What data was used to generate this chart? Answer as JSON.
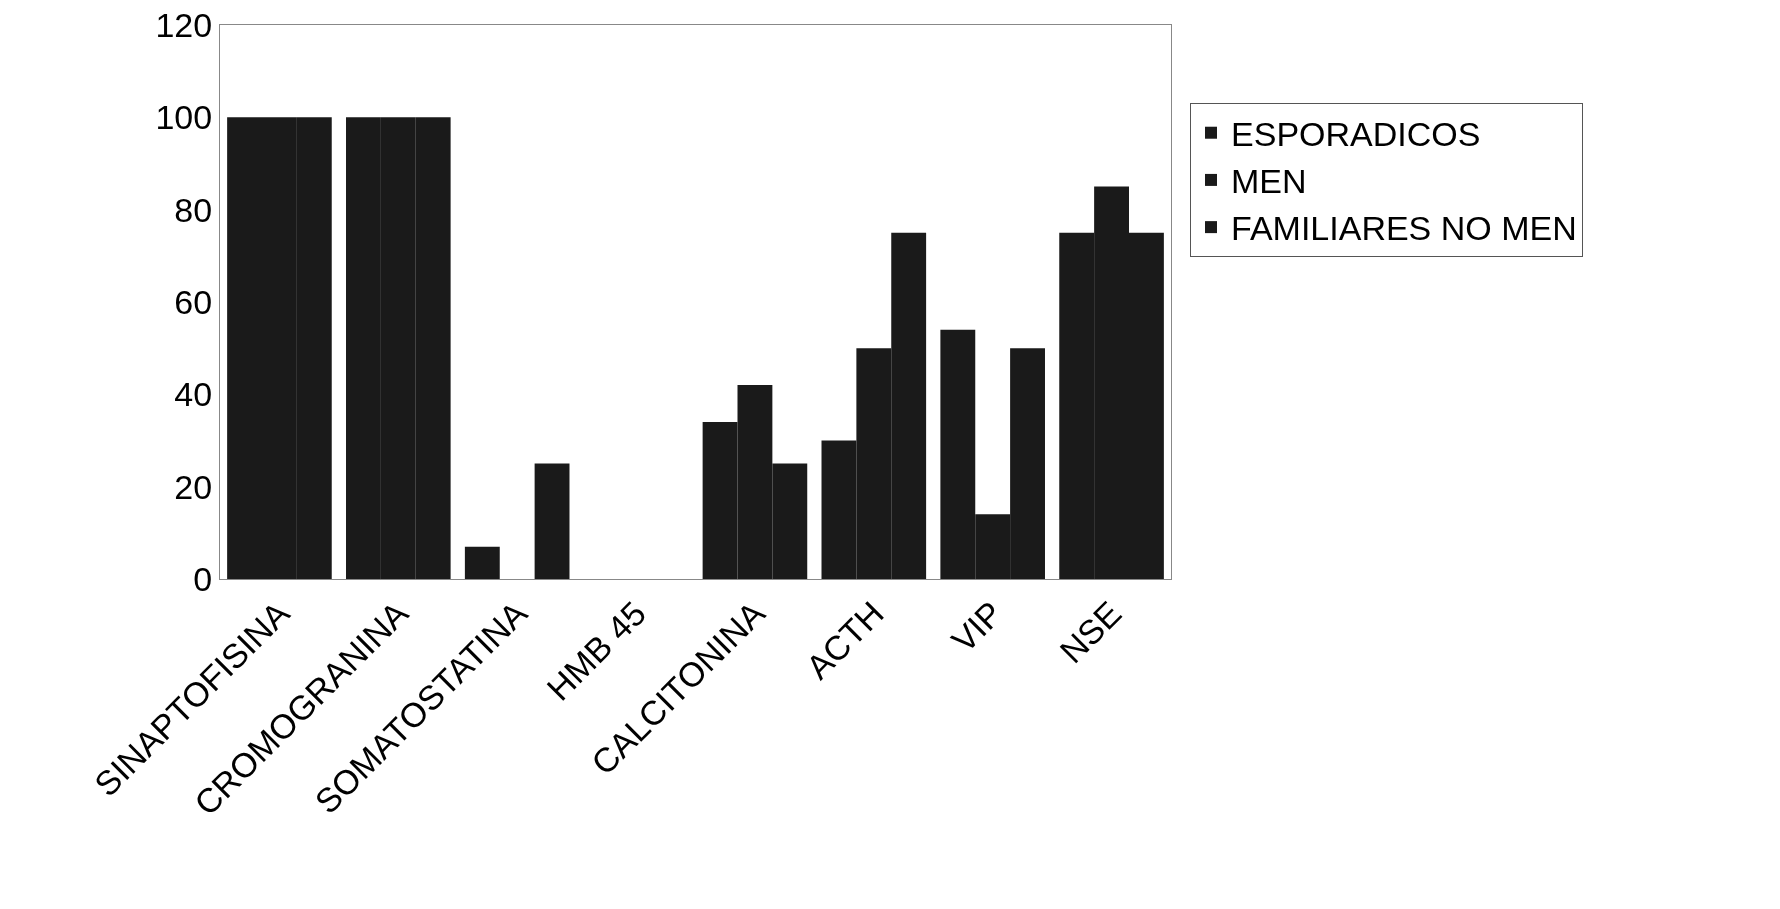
{
  "chart_data": {
    "type": "bar",
    "categories": [
      "SINAPTOFISINA",
      "CROMOGRANINA",
      "SOMATOSTATINA",
      "HMB 45",
      "CALCITONINA",
      "ACTH",
      "VIP",
      "NSE"
    ],
    "series": [
      {
        "name": "ESPORADICOS",
        "color": "#1a1a1a",
        "values": [
          100,
          100,
          7,
          0,
          34,
          30,
          54,
          75
        ]
      },
      {
        "name": "MEN",
        "color": "#1a1a1a",
        "values": [
          100,
          100,
          0,
          0,
          42,
          50,
          14,
          85
        ]
      },
      {
        "name": "FAMILIARES NO MEN",
        "color": "#1a1a1a",
        "values": [
          100,
          100,
          25,
          0,
          25,
          75,
          50,
          75
        ]
      }
    ],
    "ylim": [
      0,
      120
    ],
    "yticks": [
      0,
      20,
      40,
      60,
      80,
      100,
      120
    ],
    "grid": false,
    "legend": "right"
  }
}
